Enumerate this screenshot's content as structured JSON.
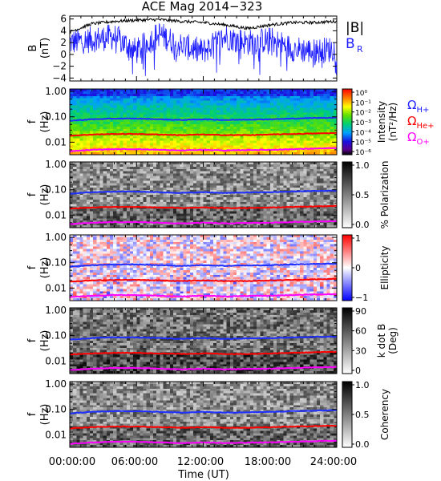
{
  "title": "ACE Mag 2014−323",
  "x_axis": {
    "label": "Time (UT)",
    "ticks": [
      "00:00:00",
      "06:00:00",
      "12:00:00",
      "18:00:00",
      "24:00:00"
    ],
    "range_hours": [
      0,
      24
    ]
  },
  "colors": {
    "B_total": "#000000",
    "B_R": "#1f1fff",
    "H+": "#1f2fff",
    "He+": "#ff0000",
    "O+": "#ff00ff"
  },
  "chart_data": [
    {
      "type": "line",
      "panel": "B",
      "ylabel": "B",
      "yunit": "(nT)",
      "ylim": [
        -4.5,
        6.5
      ],
      "yticks": [
        "6",
        "4",
        "2",
        "0",
        "−2",
        "−4"
      ],
      "legend": [
        "|B|",
        "B",
        "R"
      ],
      "series": [
        {
          "name": "|B|",
          "x_hours": [
            0,
            2,
            4,
            6,
            8,
            10,
            12,
            14,
            16,
            18,
            20,
            22,
            24
          ],
          "values": [
            3.8,
            5.2,
            5.6,
            5.8,
            5.9,
            5.6,
            5.4,
            5.0,
            4.4,
            5.0,
            5.4,
            5.4,
            5.6
          ]
        },
        {
          "name": "B_R",
          "x_hours": [
            0,
            2,
            4,
            6,
            8,
            10,
            12,
            14,
            16,
            18,
            20,
            22,
            24
          ],
          "values": [
            2.0,
            2.5,
            3.0,
            0.5,
            3.5,
            1.5,
            0.5,
            3.0,
            2.0,
            2.5,
            1.0,
            0.5,
            1.0
          ]
        }
      ]
    },
    {
      "type": "heatmap",
      "panel": "spectral intensity",
      "ylabel": "f",
      "yunit": "(Hz)",
      "yscale": "log",
      "ylim": [
        0.003,
        1.2
      ],
      "yticks": [
        "1.00",
        "0.10",
        "0.01"
      ],
      "colorbar": {
        "label": "Intensity",
        "unit": "(nT²/Hz)",
        "ticks": [
          "10⁰",
          "10⁻¹",
          "10⁻²",
          "10⁻³",
          "10⁻⁴",
          "10⁻⁵",
          "10⁻⁶"
        ]
      },
      "gyrofrequency_labels": [
        {
          "symbol": "Ω",
          "sub": "H+"
        },
        {
          "symbol": "Ω",
          "sub": "He+"
        },
        {
          "symbol": "Ω",
          "sub": "O+"
        }
      ]
    },
    {
      "type": "heatmap",
      "panel": "polarization",
      "ylabel": "f",
      "yunit": "(Hz)",
      "yscale": "log",
      "yticks": [
        "1.00",
        "0.10",
        "0.01"
      ],
      "colorbar": {
        "label": "% Polarization",
        "ticks": [
          "1.0",
          "0.5",
          "0.0"
        ],
        "range": [
          0,
          1
        ]
      }
    },
    {
      "type": "heatmap",
      "panel": "ellipticity",
      "ylabel": "f",
      "yunit": "(Hz)",
      "yscale": "log",
      "yticks": [
        "1.00",
        "0.10",
        "0.01"
      ],
      "colorbar": {
        "label": "Ellipticity",
        "ticks": [
          "1",
          "0",
          "−1"
        ],
        "range": [
          -1,
          1
        ]
      }
    },
    {
      "type": "heatmap",
      "panel": "k dot B",
      "ylabel": "f",
      "yunit": "(Hz)",
      "yscale": "log",
      "yticks": [
        "1.00",
        "0.10",
        "0.01"
      ],
      "colorbar": {
        "label": "k dot B",
        "unit": "(Deg)",
        "ticks": [
          "90",
          "60",
          "30",
          "0"
        ],
        "range": [
          0,
          90
        ]
      }
    },
    {
      "type": "heatmap",
      "panel": "coherency",
      "ylabel": "f",
      "yunit": "(Hz)",
      "yscale": "log",
      "yticks": [
        "1.00",
        "0.10",
        "0.01"
      ],
      "colorbar": {
        "label": "Coherency",
        "ticks": [
          "1.0",
          "0.5",
          "0.0"
        ],
        "range": [
          0,
          1
        ]
      }
    }
  ],
  "gyrofrequencies_hz": {
    "H+": [
      0.07,
      0.08,
      0.085,
      0.085,
      0.08,
      0.075,
      0.08,
      0.075,
      0.078,
      0.08,
      0.085,
      0.09,
      0.092
    ],
    "He+": [
      0.018,
      0.02,
      0.021,
      0.021,
      0.02,
      0.019,
      0.02,
      0.019,
      0.019,
      0.02,
      0.021,
      0.022,
      0.023
    ],
    "O+": [
      0.0044,
      0.005,
      0.0053,
      0.0053,
      0.005,
      0.0047,
      0.005,
      0.0047,
      0.0049,
      0.005,
      0.0053,
      0.0056,
      0.0058
    ],
    "x_hours": [
      0,
      2,
      4,
      6,
      8,
      10,
      12,
      14,
      16,
      18,
      20,
      22,
      24
    ]
  }
}
